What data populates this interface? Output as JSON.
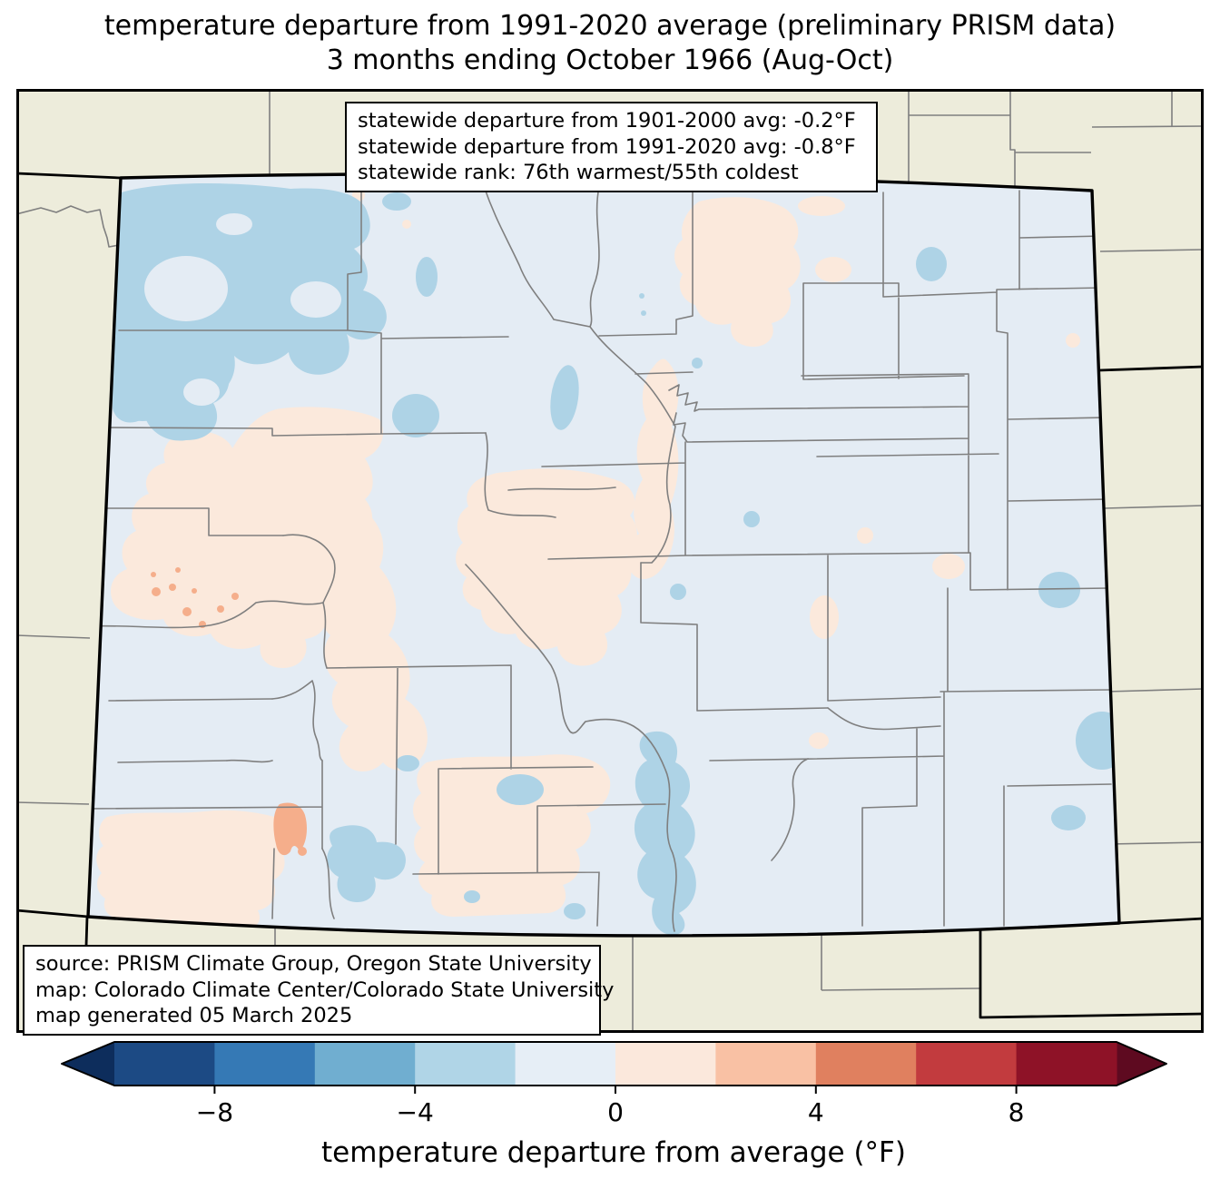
{
  "figure": {
    "title_line1": "temperature departure from 1991-2020 average (preliminary PRISM data)",
    "title_line2": "3 months ending October 1966 (Aug-Oct)"
  },
  "stats_box": {
    "line1": "statewide departure from 1901-2000 avg: -0.2°F",
    "line2": "statewide departure from 1991-2020 avg: -0.8°F",
    "line3": "statewide rank: 76th warmest/55th coldest"
  },
  "source_box": {
    "line1": "source: PRISM Climate Group, Oregon State University",
    "line2": "map: Colorado Climate Center/Colorado State University",
    "line3": "map generated 05 March 2025"
  },
  "map": {
    "region": "Colorado statewide temperature anomaly map with county boundaries",
    "colors": {
      "page_background": "#ffffff",
      "outside_state": "#edecdb",
      "state_base_anomaly": "#e4ecf4",
      "cool_patch": "#aed3e6",
      "warm_patch": "#fbe9dc",
      "warmer_patch": "#f5ae8b",
      "county_line": "#7f7f7f",
      "state_border": "#000000"
    }
  },
  "colorbar": {
    "label": "temperature departure from average (°F)",
    "tick_labels": [
      "−8",
      "−4",
      "0",
      "4",
      "8"
    ],
    "tick_values": [
      -8,
      -4,
      0,
      4,
      8
    ],
    "range": [
      -10,
      10
    ],
    "segment_colors": [
      "#1c4a84",
      "#3579b5",
      "#70aed0",
      "#b0d5e7",
      "#e6eef6",
      "#fbe8dc",
      "#f9c1a4",
      "#e0805f",
      "#c23b3e",
      "#8e1227"
    ],
    "under_arrow_color": "#0d2d5c",
    "over_arrow_color": "#5e0a20"
  },
  "chart_data": {
    "type": "heatmap",
    "title": "temperature departure from 1991-2020 average (preliminary PRISM data) — 3 months ending October 1966 (Aug-Oct)",
    "legend_label": "temperature departure from average (°F)",
    "colorbar_ticks": [
      -8,
      -4,
      0,
      4,
      8
    ],
    "colorbar_range": [
      -10,
      10
    ],
    "statewide_departure_from_1901_2000_avg_F": -0.2,
    "statewide_departure_from_1991_2020_avg_F": -0.8,
    "statewide_rank": "76th warmest/55th coldest",
    "spatial_pattern": "mostly -2 to 0 °F statewide; -4 to -2 °F patches in the northwest and south-central mountains; 0 to +2 °F in western valleys, foothills and San Luis Valley; small +2 to +4 °F spots in west-central and southwest Colorado"
  }
}
